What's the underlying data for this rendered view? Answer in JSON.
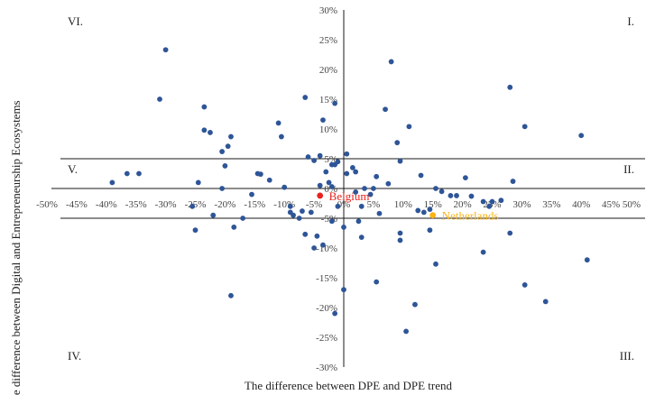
{
  "chart_data": {
    "type": "scatter",
    "xlabel": "The difference between DPE and DPE trend",
    "ylabel": "The difference between Digital and Entrepreneurship Ecosystems",
    "xlim": [
      -0.5,
      0.5
    ],
    "ylim": [
      -0.3,
      0.3
    ],
    "x_ticks": [
      "-50%",
      "-45%",
      "-40%",
      "-35%",
      "-30%",
      "-25%",
      "-20%",
      "-15%",
      "-10%",
      "-5%",
      "0%",
      "5%",
      "10%",
      "15%",
      "20%",
      "25%",
      "30%",
      "35%",
      "40%",
      "45%",
      "50%"
    ],
    "y_ticks": [
      "30%",
      "25%",
      "20%",
      "15%",
      "10%",
      "5%",
      "0%",
      "-5%",
      "-10%",
      "-15%",
      "-20%",
      "-25%",
      "-30%"
    ],
    "reference_lines": {
      "y_upper": 0.05,
      "y_lower": -0.05
    },
    "quadrant_labels": {
      "top_left": "VI.",
      "top_right": "I.",
      "mid_left": "V.",
      "mid_right": "II.",
      "bottom_left": "IV.",
      "bottom_right": "III."
    },
    "point_color": "#2e5597",
    "points": [
      [
        -0.3,
        0.233
      ],
      [
        -0.31,
        0.15
      ],
      [
        -0.235,
        0.137
      ],
      [
        -0.235,
        0.098
      ],
      [
        -0.225,
        0.094
      ],
      [
        -0.195,
        0.071
      ],
      [
        -0.19,
        0.087
      ],
      [
        -0.205,
        0.062
      ],
      [
        -0.2,
        0.038
      ],
      [
        -0.245,
        0.01
      ],
      [
        -0.365,
        0.025
      ],
      [
        -0.39,
        0.01
      ],
      [
        -0.345,
        0.025
      ],
      [
        -0.185,
        -0.065
      ],
      [
        -0.19,
        -0.18
      ],
      [
        -0.25,
        -0.07
      ],
      [
        -0.22,
        -0.045
      ],
      [
        -0.255,
        -0.03
      ],
      [
        -0.205,
        0.0
      ],
      [
        -0.17,
        -0.05
      ],
      [
        -0.155,
        -0.01
      ],
      [
        -0.145,
        0.025
      ],
      [
        -0.14,
        0.024
      ],
      [
        -0.125,
        0.014
      ],
      [
        -0.11,
        0.11
      ],
      [
        -0.105,
        0.087
      ],
      [
        -0.065,
        0.153
      ],
      [
        -0.035,
        0.115
      ],
      [
        -0.015,
        0.143
      ],
      [
        -0.06,
        0.053
      ],
      [
        -0.05,
        0.047
      ],
      [
        -0.04,
        0.055
      ],
      [
        -0.02,
        0.04
      ],
      [
        -0.03,
        0.028
      ],
      [
        -0.015,
        0.04
      ],
      [
        -0.01,
        0.045
      ],
      [
        -0.1,
        0.002
      ],
      [
        -0.09,
        -0.03
      ],
      [
        -0.085,
        -0.045
      ],
      [
        -0.07,
        -0.038
      ],
      [
        -0.075,
        -0.05
      ],
      [
        -0.065,
        -0.077
      ],
      [
        -0.045,
        -0.08
      ],
      [
        -0.05,
        -0.1
      ],
      [
        -0.035,
        -0.095
      ],
      [
        -0.09,
        -0.04
      ],
      [
        -0.055,
        -0.04
      ],
      [
        -0.04,
        0.005
      ],
      [
        -0.025,
        0.01
      ],
      [
        -0.02,
        0.003
      ],
      [
        -0.01,
        -0.03
      ],
      [
        -0.02,
        -0.055
      ],
      [
        -0.015,
        -0.21
      ],
      [
        0.0,
        -0.17
      ],
      [
        0.0,
        -0.065
      ],
      [
        0.005,
        0.058
      ],
      [
        0.005,
        0.025
      ],
      [
        0.015,
        0.035
      ],
      [
        0.02,
        0.028
      ],
      [
        0.02,
        -0.006
      ],
      [
        0.025,
        -0.055
      ],
      [
        0.03,
        -0.03
      ],
      [
        0.03,
        -0.082
      ],
      [
        0.035,
        0.0
      ],
      [
        0.045,
        -0.01
      ],
      [
        0.05,
        0.0
      ],
      [
        0.055,
        0.02
      ],
      [
        0.055,
        -0.157
      ],
      [
        0.06,
        -0.042
      ],
      [
        0.07,
        0.133
      ],
      [
        0.075,
        0.008
      ],
      [
        0.08,
        0.213
      ],
      [
        0.09,
        0.077
      ],
      [
        0.095,
        0.046
      ],
      [
        0.095,
        -0.075
      ],
      [
        0.095,
        -0.087
      ],
      [
        0.105,
        -0.24
      ],
      [
        0.11,
        0.104
      ],
      [
        0.12,
        -0.195
      ],
      [
        0.125,
        -0.037
      ],
      [
        0.13,
        0.022
      ],
      [
        0.135,
        -0.04
      ],
      [
        0.145,
        -0.035
      ],
      [
        0.145,
        -0.07
      ],
      [
        0.155,
        -0.127
      ],
      [
        0.155,
        0.0
      ],
      [
        0.165,
        -0.005
      ],
      [
        0.18,
        -0.012
      ],
      [
        0.19,
        -0.012
      ],
      [
        0.205,
        0.018
      ],
      [
        0.215,
        -0.013
      ],
      [
        0.235,
        -0.022
      ],
      [
        0.235,
        -0.107
      ],
      [
        0.245,
        -0.03
      ],
      [
        0.25,
        -0.022
      ],
      [
        0.265,
        -0.02
      ],
      [
        0.28,
        0.17
      ],
      [
        0.28,
        -0.075
      ],
      [
        0.285,
        0.012
      ],
      [
        0.305,
        0.104
      ],
      [
        0.305,
        -0.162
      ],
      [
        0.34,
        -0.19
      ],
      [
        0.4,
        0.089
      ],
      [
        0.41,
        -0.12
      ]
    ],
    "highlights": [
      {
        "name": "Belgium",
        "x": -0.04,
        "y": -0.012,
        "color": "#e8231e"
      },
      {
        "name": "Netherlands",
        "x": 0.15,
        "y": -0.045,
        "color": "#fbb416"
      }
    ]
  }
}
